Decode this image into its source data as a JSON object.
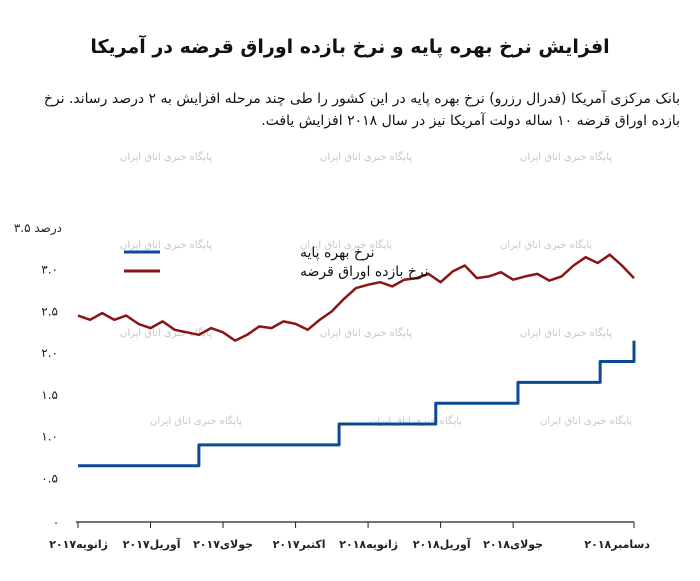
{
  "title": "افزایش نرخ بهره پایه و نرخ بازده اوراق قرضه در آمریکا",
  "subtitle": "بانک مرکزی آمریکا (فدرال رزرو) نرخ بهره پایه در این کشور را طی چند مرحله افزایش به ۲ درصد رساند. نرخ بازده اوراق قرضه ۱۰ ساله دولت آمریکا نیز در سال ۲۰۱۸ افزایش یافت.",
  "watermark": "پایگاه خبری اتاق ایران",
  "colors": {
    "base_rate": "#0d4a94",
    "bond_yield": "#8b1414"
  },
  "chart_data": {
    "type": "line",
    "ylim": [
      0,
      3.5
    ],
    "y_ticks": [
      {
        "value": 0,
        "label": "."
      },
      {
        "value": 0.5,
        "label": "۰.۵"
      },
      {
        "value": 1.0,
        "label": "۱.۰"
      },
      {
        "value": 1.5,
        "label": "۱.۵"
      },
      {
        "value": 2.0,
        "label": "۲.۰"
      },
      {
        "value": 2.5,
        "label": "۲.۵"
      },
      {
        "value": 3.0,
        "label": "۳.۰"
      },
      {
        "value": 3.5,
        "label": "۳.۵ درصد"
      }
    ],
    "x_ticks": [
      "ژانویه۲۰۱۷",
      "آوریل۲۰۱۷",
      "جولای۲۰۱۷",
      "اکتبر۲۰۱۷",
      "ژانویه۲۰۱۸",
      "آوریل۲۰۱۸",
      "جولای۲۰۱۸",
      "دسامبر۲۰۱۸"
    ],
    "x_months": [
      0,
      3,
      6,
      9,
      12,
      15,
      18,
      23
    ],
    "x_range": [
      0,
      23
    ],
    "legend": [
      "نرخ بهره پایه",
      "نرخ بازده اوراق قرضه"
    ],
    "series": [
      {
        "name": "نرخ بهره پایه",
        "color": "#0d4a94",
        "step": true,
        "x": [
          0,
          2.2,
          5.0,
          10.0,
          10.8,
          13.8,
          14.8,
          17.5,
          18.2,
          20.9,
          21.6,
          23
        ],
        "values": [
          0.65,
          0.65,
          0.9,
          0.9,
          1.15,
          1.15,
          1.4,
          1.4,
          1.65,
          1.65,
          1.9,
          2.15
        ]
      },
      {
        "name": "نرخ بازده اوراق قرضه",
        "color": "#8b1414",
        "x": [
          0,
          0.5,
          1,
          1.5,
          2,
          2.5,
          3,
          3.5,
          4,
          4.5,
          5,
          5.5,
          6,
          6.5,
          7,
          7.5,
          8,
          8.5,
          9,
          9.5,
          10,
          10.5,
          11,
          11.5,
          12,
          12.5,
          13,
          13.5,
          14,
          14.5,
          15,
          15.5,
          16,
          16.5,
          17,
          17.5,
          18,
          18.5,
          19,
          19.5,
          20,
          20.5,
          21,
          21.5,
          22,
          22.5,
          23
        ],
        "values": [
          2.45,
          2.4,
          2.48,
          2.4,
          2.45,
          2.35,
          2.3,
          2.38,
          2.28,
          2.25,
          2.22,
          2.3,
          2.25,
          2.15,
          2.22,
          2.32,
          2.3,
          2.38,
          2.35,
          2.28,
          2.4,
          2.5,
          2.65,
          2.78,
          2.82,
          2.85,
          2.8,
          2.88,
          2.9,
          2.95,
          2.85,
          2.98,
          3.05,
          2.9,
          2.92,
          2.97,
          2.88,
          2.92,
          2.95,
          2.87,
          2.92,
          3.05,
          3.15,
          3.08,
          3.18,
          3.05,
          2.9
        ]
      }
    ]
  }
}
